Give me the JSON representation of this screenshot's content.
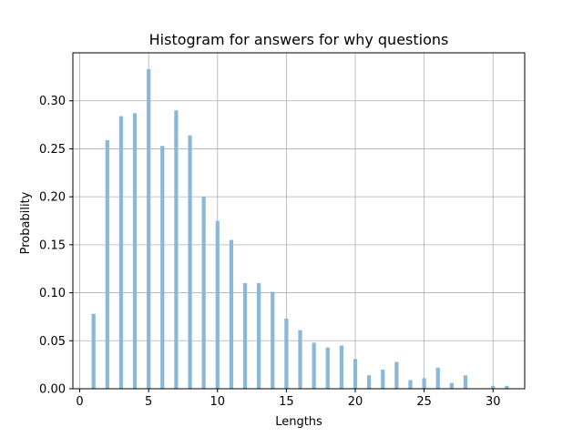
{
  "chart_data": {
    "type": "bar",
    "title": "Histogram for answers for why questions",
    "xlabel": "Lengths",
    "ylabel": "Probability",
    "xlim": [
      -0.5,
      32.3
    ],
    "ylim": [
      0,
      0.35
    ],
    "xticks": [
      0,
      5,
      10,
      15,
      20,
      25,
      30
    ],
    "xtick_labels": [
      "0",
      "5",
      "10",
      "15",
      "20",
      "25",
      "30"
    ],
    "yticks": [
      0.0,
      0.05,
      0.1,
      0.15,
      0.2,
      0.25,
      0.3
    ],
    "ytick_labels": [
      "0.00",
      "0.05",
      "0.10",
      "0.15",
      "0.20",
      "0.25",
      "0.30"
    ],
    "grid": true,
    "bar_color": "#8ab8d8",
    "bar_width": 0.28,
    "x": [
      1,
      2,
      3,
      4,
      5,
      6,
      7,
      8,
      9,
      10,
      11,
      12,
      13,
      14,
      15,
      16,
      17,
      18,
      19,
      20,
      21,
      22,
      23,
      24,
      25,
      26,
      27,
      28,
      29,
      30,
      31
    ],
    "values": [
      0.078,
      0.259,
      0.284,
      0.287,
      0.333,
      0.253,
      0.29,
      0.264,
      0.2,
      0.175,
      0.155,
      0.11,
      0.11,
      0.101,
      0.073,
      0.061,
      0.048,
      0.043,
      0.045,
      0.031,
      0.014,
      0.02,
      0.028,
      0.009,
      0.011,
      0.022,
      0.006,
      0.014,
      0.0,
      0.003,
      0.003
    ]
  }
}
